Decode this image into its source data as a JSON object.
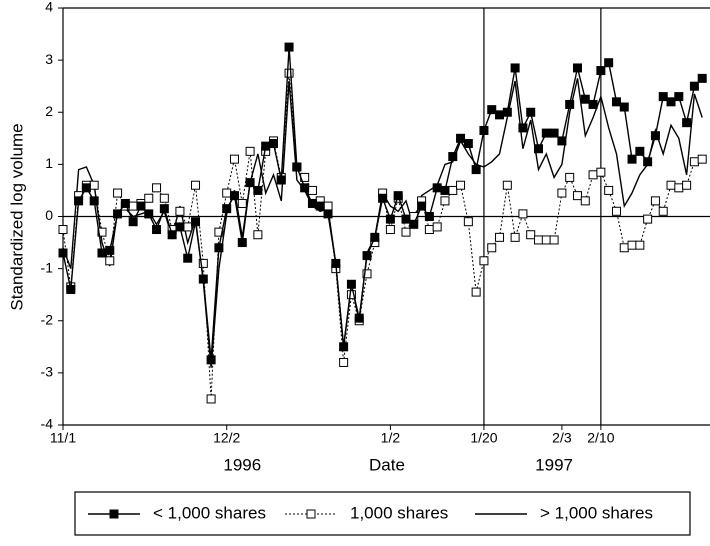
{
  "chart_data": {
    "type": "line",
    "xlabel": "Date",
    "ylabel": "Standardized log volume",
    "year_labels": [
      {
        "value": 23,
        "label": "1996"
      },
      {
        "value": 63,
        "label": "1997"
      }
    ],
    "x": [
      0,
      1,
      2,
      3,
      4,
      5,
      6,
      7,
      8,
      9,
      10,
      11,
      12,
      13,
      14,
      15,
      16,
      17,
      18,
      19,
      20,
      21,
      22,
      23,
      24,
      25,
      26,
      27,
      28,
      29,
      30,
      31,
      32,
      33,
      34,
      35,
      36,
      37,
      38,
      39,
      40,
      41,
      42,
      43,
      44,
      45,
      46,
      47,
      48,
      49,
      50,
      51,
      52,
      53,
      54,
      55,
      56,
      57,
      58,
      59,
      60,
      61,
      62,
      63,
      64,
      65,
      66,
      67,
      68,
      69,
      70,
      71,
      72,
      73,
      74,
      75,
      76,
      77,
      78,
      79,
      80,
      81,
      82
    ],
    "xlim": [
      0,
      83
    ],
    "xticks": [
      {
        "value": 0,
        "label": "11/1"
      },
      {
        "value": 21,
        "label": "12/2"
      },
      {
        "value": 42,
        "label": "1/2"
      },
      {
        "value": 54,
        "label": "1/20"
      },
      {
        "value": 64,
        "label": "2/3"
      },
      {
        "value": 69,
        "label": "2/10"
      }
    ],
    "vlines": [
      54,
      69
    ],
    "ylim": [
      -4,
      4
    ],
    "yticks": [
      -4,
      -3,
      -2,
      -1,
      0,
      1,
      2,
      3,
      4
    ],
    "zero_line": true,
    "series": [
      {
        "name": "< 1,000 shares",
        "color": "#000000",
        "line_style": "solid",
        "marker": "filled-square",
        "values": [
          -0.7,
          -1.4,
          0.3,
          0.55,
          0.3,
          -0.7,
          -0.65,
          0.05,
          0.25,
          -0.1,
          0.2,
          0.05,
          -0.25,
          0.15,
          -0.35,
          -0.2,
          -0.8,
          -0.1,
          -1.2,
          -2.75,
          -0.6,
          0.15,
          0.4,
          -0.5,
          0.65,
          0.5,
          1.35,
          1.4,
          0.7,
          3.25,
          0.95,
          0.55,
          0.25,
          0.2,
          0.05,
          -0.9,
          -2.5,
          -1.3,
          -1.95,
          -0.75,
          -0.4,
          0.35,
          -0.05,
          0.4,
          -0.05,
          -0.15,
          0.2,
          0.0,
          0.55,
          0.5,
          1.15,
          1.5,
          1.4,
          0.9,
          1.65,
          2.05,
          1.95,
          2.0,
          2.85,
          1.7,
          2.0,
          1.3,
          1.6,
          1.6,
          1.45,
          2.15,
          2.85,
          2.25,
          2.15,
          2.8,
          2.95,
          2.2,
          2.1,
          1.1,
          1.25,
          1.05,
          1.55,
          2.3,
          2.2,
          2.3,
          1.8,
          2.5,
          2.65
        ]
      },
      {
        "name": "1,000 shares",
        "color": "#000000",
        "line_style": "dotted",
        "marker": "open-square",
        "values": [
          -0.25,
          -1.35,
          0.4,
          0.6,
          0.6,
          -0.3,
          -0.85,
          0.45,
          0.2,
          0.2,
          0.25,
          0.35,
          0.55,
          0.35,
          -0.25,
          0.1,
          -0.2,
          0.6,
          -0.9,
          -3.5,
          -0.3,
          0.45,
          1.1,
          0.25,
          1.25,
          -0.35,
          1.25,
          1.45,
          0.75,
          2.75,
          0.95,
          0.75,
          0.5,
          0.3,
          0.2,
          -1.0,
          -2.8,
          -1.5,
          -2.0,
          -1.1,
          -0.5,
          0.45,
          -0.25,
          0.35,
          -0.3,
          0.0,
          0.3,
          -0.25,
          -0.2,
          0.3,
          0.5,
          0.6,
          -0.1,
          -1.45,
          -0.85,
          -0.6,
          -0.4,
          0.6,
          -0.4,
          0.05,
          -0.35,
          -0.45,
          -0.45,
          -0.45,
          0.45,
          0.75,
          0.4,
          0.3,
          0.8,
          0.85,
          0.5,
          0.1,
          -0.6,
          -0.55,
          -0.55,
          -0.05,
          0.3,
          0.1,
          0.6,
          0.55,
          0.6,
          1.05,
          1.1
        ]
      },
      {
        "name": "> 1,000 shares",
        "color": "#000000",
        "line_style": "solid",
        "marker": "none",
        "values": [
          -0.6,
          -1.0,
          0.9,
          0.95,
          0.6,
          -0.5,
          -0.95,
          0.1,
          0.15,
          0.0,
          0.05,
          0.1,
          -0.15,
          0.1,
          -0.4,
          0.2,
          -0.5,
          -0.05,
          -1.25,
          -2.9,
          -1.0,
          0.05,
          0.5,
          -0.4,
          0.65,
          1.2,
          0.45,
          0.8,
          0.3,
          2.6,
          0.7,
          0.5,
          0.2,
          0.1,
          0.15,
          -0.9,
          -2.5,
          -1.3,
          -2.0,
          -0.7,
          -0.4,
          0.45,
          0.2,
          0.1,
          0.3,
          -0.2,
          0.4,
          0.5,
          0.6,
          1.0,
          1.05,
          1.45,
          1.2,
          1.0,
          0.95,
          1.05,
          1.2,
          1.9,
          2.6,
          1.3,
          1.85,
          0.9,
          1.2,
          0.75,
          1.0,
          2.0,
          2.65,
          1.55,
          1.9,
          2.3,
          1.7,
          1.2,
          0.2,
          0.45,
          0.8,
          1.0,
          1.65,
          1.2,
          1.75,
          1.5,
          0.8,
          2.35,
          1.9
        ]
      }
    ]
  }
}
